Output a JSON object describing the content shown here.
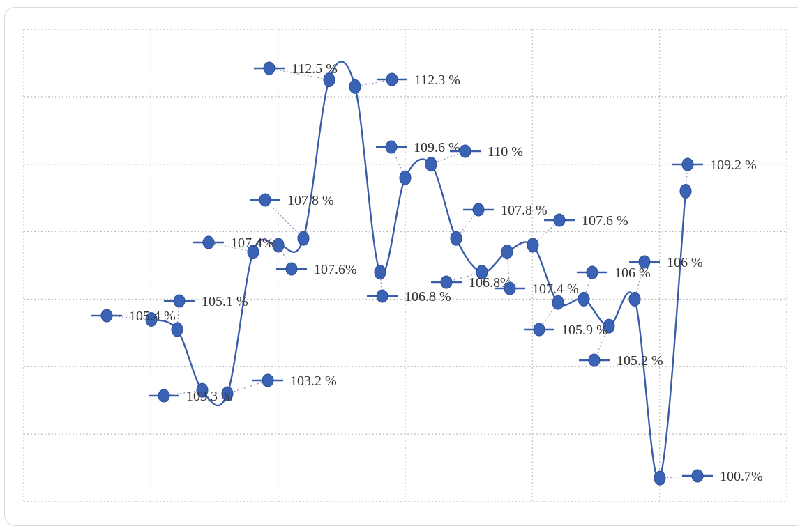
{
  "chart_data": {
    "type": "line",
    "title": "",
    "xlabel": "",
    "ylabel": "",
    "grid": true,
    "legend": "none",
    "ylim": [
      100,
      114
    ],
    "y_step": 2,
    "x_grid_divisions": 6,
    "series": [
      {
        "color": "#3a63b5",
        "values": [
          105.4,
          105.1,
          103.3,
          103.2,
          107.4,
          107.6,
          107.8,
          112.5,
          112.3,
          106.8,
          109.6,
          110,
          107.8,
          106.8,
          107.4,
          107.6,
          105.9,
          106,
          105.2,
          106,
          100.7,
          109.2
        ]
      }
    ],
    "labels": [
      "105.4 %",
      "105.1 %",
      "103.3 %",
      "103.2 %",
      "107.4%",
      "107.6%",
      "107.8 %",
      "112.5 %",
      "112.3 %",
      "106.8 %",
      "109.6 %",
      "110 %",
      "107.8 %",
      "106.8%",
      "107.4 %",
      "107.6 %",
      "105.9 %",
      "106 %",
      "105.2 %",
      "106 %",
      "100.7%",
      "109.2 %"
    ]
  }
}
